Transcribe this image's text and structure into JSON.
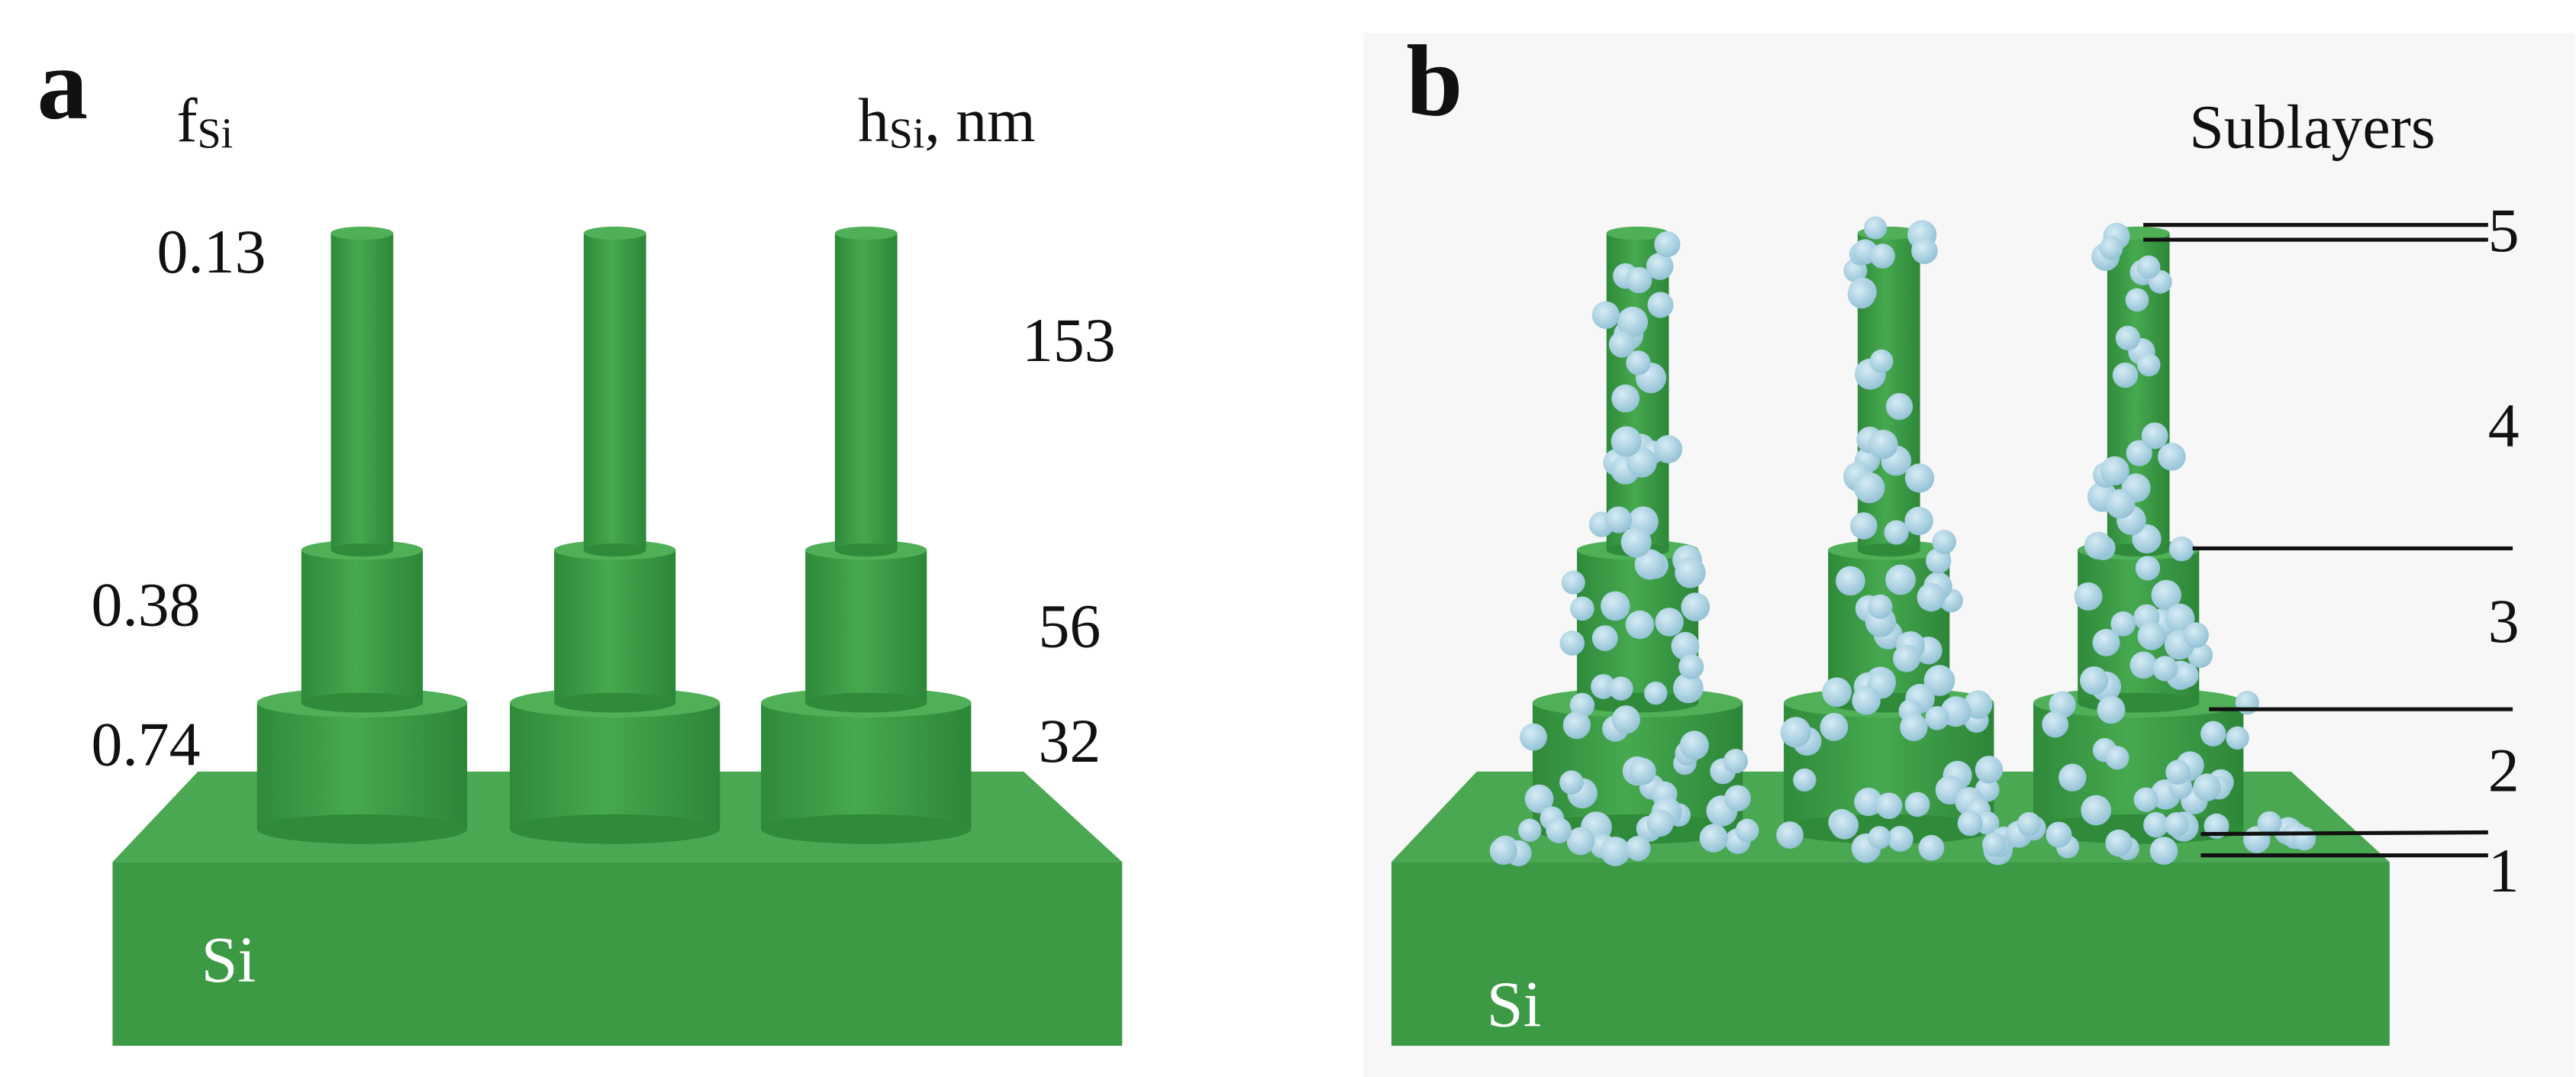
{
  "panel_a": {
    "letter": "a",
    "fraction_header": {
      "symbol": "f",
      "subscript": "Si"
    },
    "height_header": {
      "symbol": "h",
      "subscript": "Si",
      "unit": ", nm"
    },
    "fractions": [
      "0.13",
      "0.38",
      "0.74"
    ],
    "heights": [
      "153",
      "56",
      "32"
    ],
    "substrate": "Si"
  },
  "panel_b": {
    "letter": "b",
    "header": "Sublayers",
    "sublayers": [
      "5",
      "4",
      "3",
      "2",
      "1"
    ],
    "substrate": "Si"
  }
}
